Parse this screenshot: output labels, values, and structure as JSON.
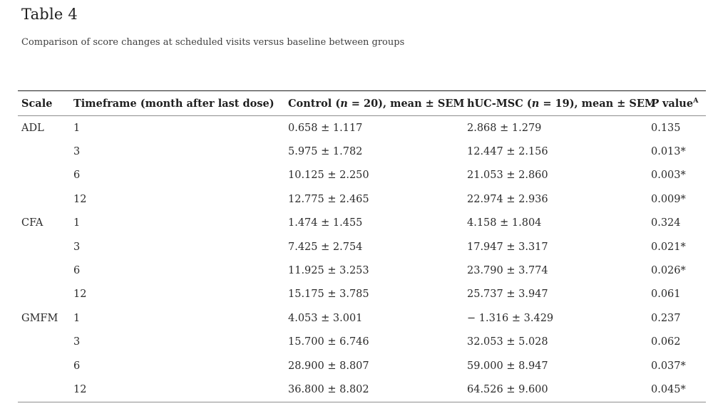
{
  "page": {
    "title": "Table 4",
    "caption": "Comparison of score changes at scheduled visits versus baseline between groups"
  },
  "colors": {
    "text": "#2b2b2b",
    "border_dark": "#1c1c1c",
    "border_light": "#8e8e8e",
    "background": "#ffffff"
  },
  "table": {
    "columns": [
      {
        "label": "Scale"
      },
      {
        "label": "Timeframe (month after last dose)"
      },
      {
        "pre": "Control (",
        "italic": "n",
        "post": " = 20), mean ± SEM"
      },
      {
        "pre": "hUC-MSC (",
        "italic": "n",
        "post": " = 19), mean ± SEM"
      },
      {
        "italic": "P",
        "post": " value",
        "sup": "A"
      }
    ],
    "rows": [
      {
        "cells": [
          "ADL",
          "1",
          "0.658 ± 1.117",
          "2.868 ± 1.279",
          "0.135"
        ]
      },
      {
        "cells": [
          "",
          "3",
          "5.975 ± 1.782",
          "12.447 ± 2.156",
          "0.013*"
        ]
      },
      {
        "cells": [
          "",
          "6",
          "10.125 ± 2.250",
          "21.053 ± 2.860",
          "0.003*"
        ]
      },
      {
        "cells": [
          "",
          "12",
          "12.775 ± 2.465",
          "22.974 ± 2.936",
          "0.009*"
        ]
      },
      {
        "cells": [
          "CFA",
          "1",
          "1.474 ± 1.455",
          "4.158 ± 1.804",
          "0.324"
        ]
      },
      {
        "cells": [
          "",
          "3",
          "7.425 ± 2.754",
          "17.947 ± 3.317",
          "0.021*"
        ]
      },
      {
        "cells": [
          "",
          "6",
          "11.925 ± 3.253",
          "23.790 ± 3.774",
          "0.026*"
        ]
      },
      {
        "cells": [
          "",
          "12",
          "15.175 ± 3.785",
          "25.737 ± 3.947",
          "0.061"
        ]
      },
      {
        "cells": [
          "GMFM",
          "1",
          "4.053 ± 3.001",
          "− 1.316 ± 3.429",
          "0.237"
        ]
      },
      {
        "cells": [
          "",
          "3",
          "15.700 ± 6.746",
          "32.053 ± 5.028",
          "0.062"
        ]
      },
      {
        "cells": [
          "",
          "6",
          "28.900 ± 8.807",
          "59.000 ± 8.947",
          "0.037*"
        ]
      },
      {
        "cells": [
          "",
          "12",
          "36.800 ± 8.802",
          "64.526 ± 9.600",
          "0.045*"
        ]
      }
    ]
  }
}
